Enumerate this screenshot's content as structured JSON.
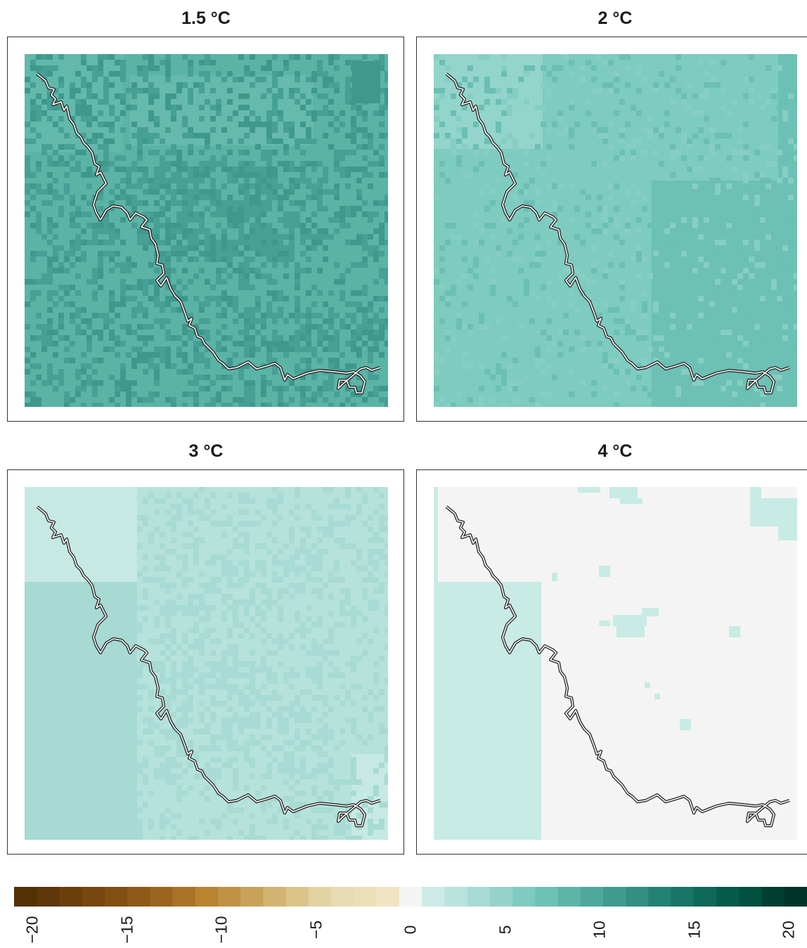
{
  "panels": [
    {
      "title": "1.5 °C",
      "base": "#5bb3a6",
      "texture": "#47a096",
      "texture_density": 0.38,
      "patches": []
    },
    {
      "title": "2 °C",
      "base": "#7ecbbf",
      "texture": "#6bbfb3",
      "texture_density": 0.33,
      "patches_desc": "lighter north-west block, darker east half"
    },
    {
      "title": "3 °C",
      "base": "#b6e2dc",
      "texture": "#a7dbd3",
      "texture_density": 0.3,
      "patches_desc": "lighter north-west and south-east blocks, darker west strip"
    },
    {
      "title": "4 °C",
      "base": "#f4f4f4",
      "texture": "#c8ebe5",
      "texture_density": 0.04,
      "patches_desc": "light teal west strip, scattered teal cells"
    }
  ],
  "legend": {
    "ticks": [
      "−20",
      "−15",
      "−10",
      "−5",
      "0",
      "5",
      "10",
      "15",
      "20"
    ],
    "colors": [
      "#543005",
      "#5f3608",
      "#6b3e0b",
      "#77470f",
      "#824f13",
      "#8f5a18",
      "#9b6520",
      "#a97428",
      "#b98330",
      "#c29244",
      "#c9a25a",
      "#d2b371",
      "#dbc48a",
      "#e3d2a2",
      "#e8dbb4",
      "#ecdfb8",
      "#f1e4c3",
      "#f4f4f4",
      "#cdebe6",
      "#bbe3dd",
      "#a8dbd4",
      "#95d3ca",
      "#80cbc0",
      "#6ec1b5",
      "#5db5a8",
      "#4ea99c",
      "#3f9c8f",
      "#328f83",
      "#248175",
      "#187567",
      "#0e6859",
      "#065b4b",
      "#01503f",
      "#003f32",
      "#00352a"
    ]
  }
}
